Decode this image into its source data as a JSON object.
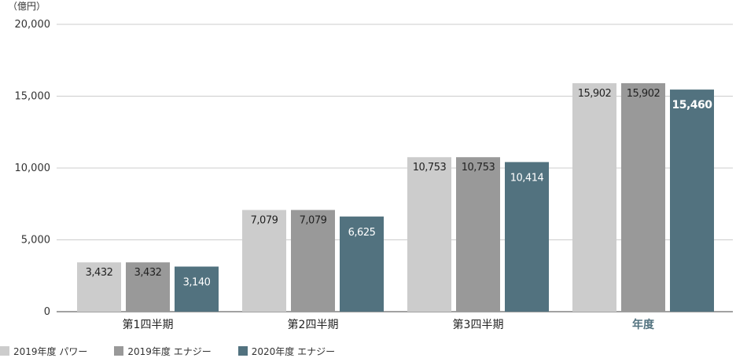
{
  "chart_data": {
    "type": "bar",
    "unit_label": "（億円）",
    "categories": [
      "第1四半期",
      "第2四半期",
      "第3四半期",
      "年度"
    ],
    "highlight_category": "年度",
    "ylim": [
      0,
      20000
    ],
    "yticks": [
      0,
      5000,
      10000,
      15000,
      20000
    ],
    "ytick_labels": [
      "0",
      "5,000",
      "10,000",
      "15,000",
      "20,000"
    ],
    "grid": true,
    "legend_position": "bottom-left",
    "series": [
      {
        "name": "2019年度 パワー",
        "color": "#cccccc",
        "values": [
          3432,
          7079,
          10753,
          15902
        ],
        "labels": [
          "3,432",
          "7,079",
          "10,753",
          "15,902"
        ]
      },
      {
        "name": "2019年度 エナジー",
        "color": "#999999",
        "values": [
          3432,
          7079,
          10753,
          15902
        ],
        "labels": [
          "3,432",
          "7,079",
          "10,753",
          "15,902"
        ]
      },
      {
        "name": "2020年度 エナジー",
        "color": "#52727f",
        "values": [
          3140,
          6625,
          10414,
          15460
        ],
        "labels": [
          "3,140",
          "6,625",
          "10,414",
          "15,460"
        ]
      }
    ]
  }
}
